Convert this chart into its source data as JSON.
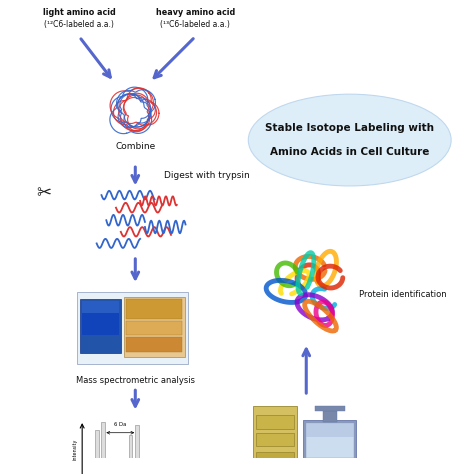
{
  "title_line1": "Stable Isotope Labeling with",
  "title_line2": "Amino Acids in Cell Culture",
  "label_light_bold": "light amino acid",
  "label_light_sub": "(¹²C6-labeled a.a.)",
  "label_heavy_bold": "heavy amino acid",
  "label_heavy_sub": "(¹³C6-labeled a.a.)",
  "combine_label": "Combine",
  "digest_label": "Digest with trypsin",
  "mass_spec_label": "Mass spectrometric analysis",
  "protein_id_label": "Protein identification",
  "intensity_label": "intensity",
  "da_label": "6 Da",
  "arrow_color": "#5566cc",
  "light_color": "#dd3333",
  "heavy_color": "#3366cc",
  "scissors_color": "#222222",
  "ellipse_fill": "#ddeef8",
  "ellipse_edge": "#c0d8ee",
  "bg_color": "#ffffff",
  "text_color": "#111111"
}
